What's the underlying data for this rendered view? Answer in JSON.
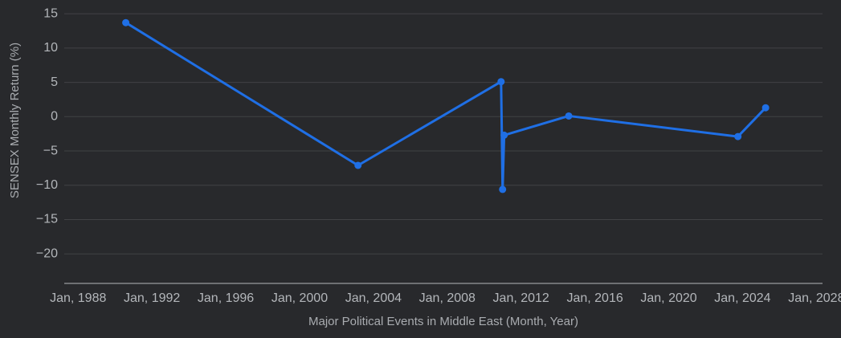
{
  "chart_data": {
    "type": "line",
    "x_label": "Major Political Events in Middle East (Month, Year)",
    "y_label": "SENSEX Monthly Return (%)",
    "x": [
      "1990-08",
      "2003-03",
      "2010-12",
      "2011-01",
      "2011-02",
      "2014-08",
      "2023-10",
      "2025-04"
    ],
    "series": [
      {
        "color": "#1f6fe5",
        "values": [
          13.7,
          -7.1,
          5.1,
          -10.6,
          -2.7,
          0.1,
          -2.9,
          1.3
        ]
      }
    ],
    "xlim": [
      "1987-04",
      "2028-05"
    ],
    "xticks": [
      {
        "value": "1988-01",
        "label": "Jan, 1988"
      },
      {
        "value": "1992-01",
        "label": "Jan, 1992"
      },
      {
        "value": "1996-01",
        "label": "Jan, 1996"
      },
      {
        "value": "2000-01",
        "label": "Jan, 2000"
      },
      {
        "value": "2004-01",
        "label": "Jan, 2004"
      },
      {
        "value": "2008-01",
        "label": "Jan, 2008"
      },
      {
        "value": "2012-01",
        "label": "Jan, 2012"
      },
      {
        "value": "2016-01",
        "label": "Jan, 2016"
      },
      {
        "value": "2020-01",
        "label": "Jan, 2020"
      },
      {
        "value": "2024-01",
        "label": "Jan, 2024"
      },
      {
        "value": "2028-01",
        "label": "Jan, 2028"
      }
    ],
    "ylim": [
      -24.3,
      17
    ],
    "yticks": [
      15,
      10,
      5,
      0,
      {
        "value": -5,
        "label": "−5"
      },
      {
        "value": -10,
        "label": "−10"
      },
      {
        "value": -15,
        "label": "−15"
      },
      {
        "value": -20,
        "label": "−20"
      }
    ],
    "grid": true
  }
}
